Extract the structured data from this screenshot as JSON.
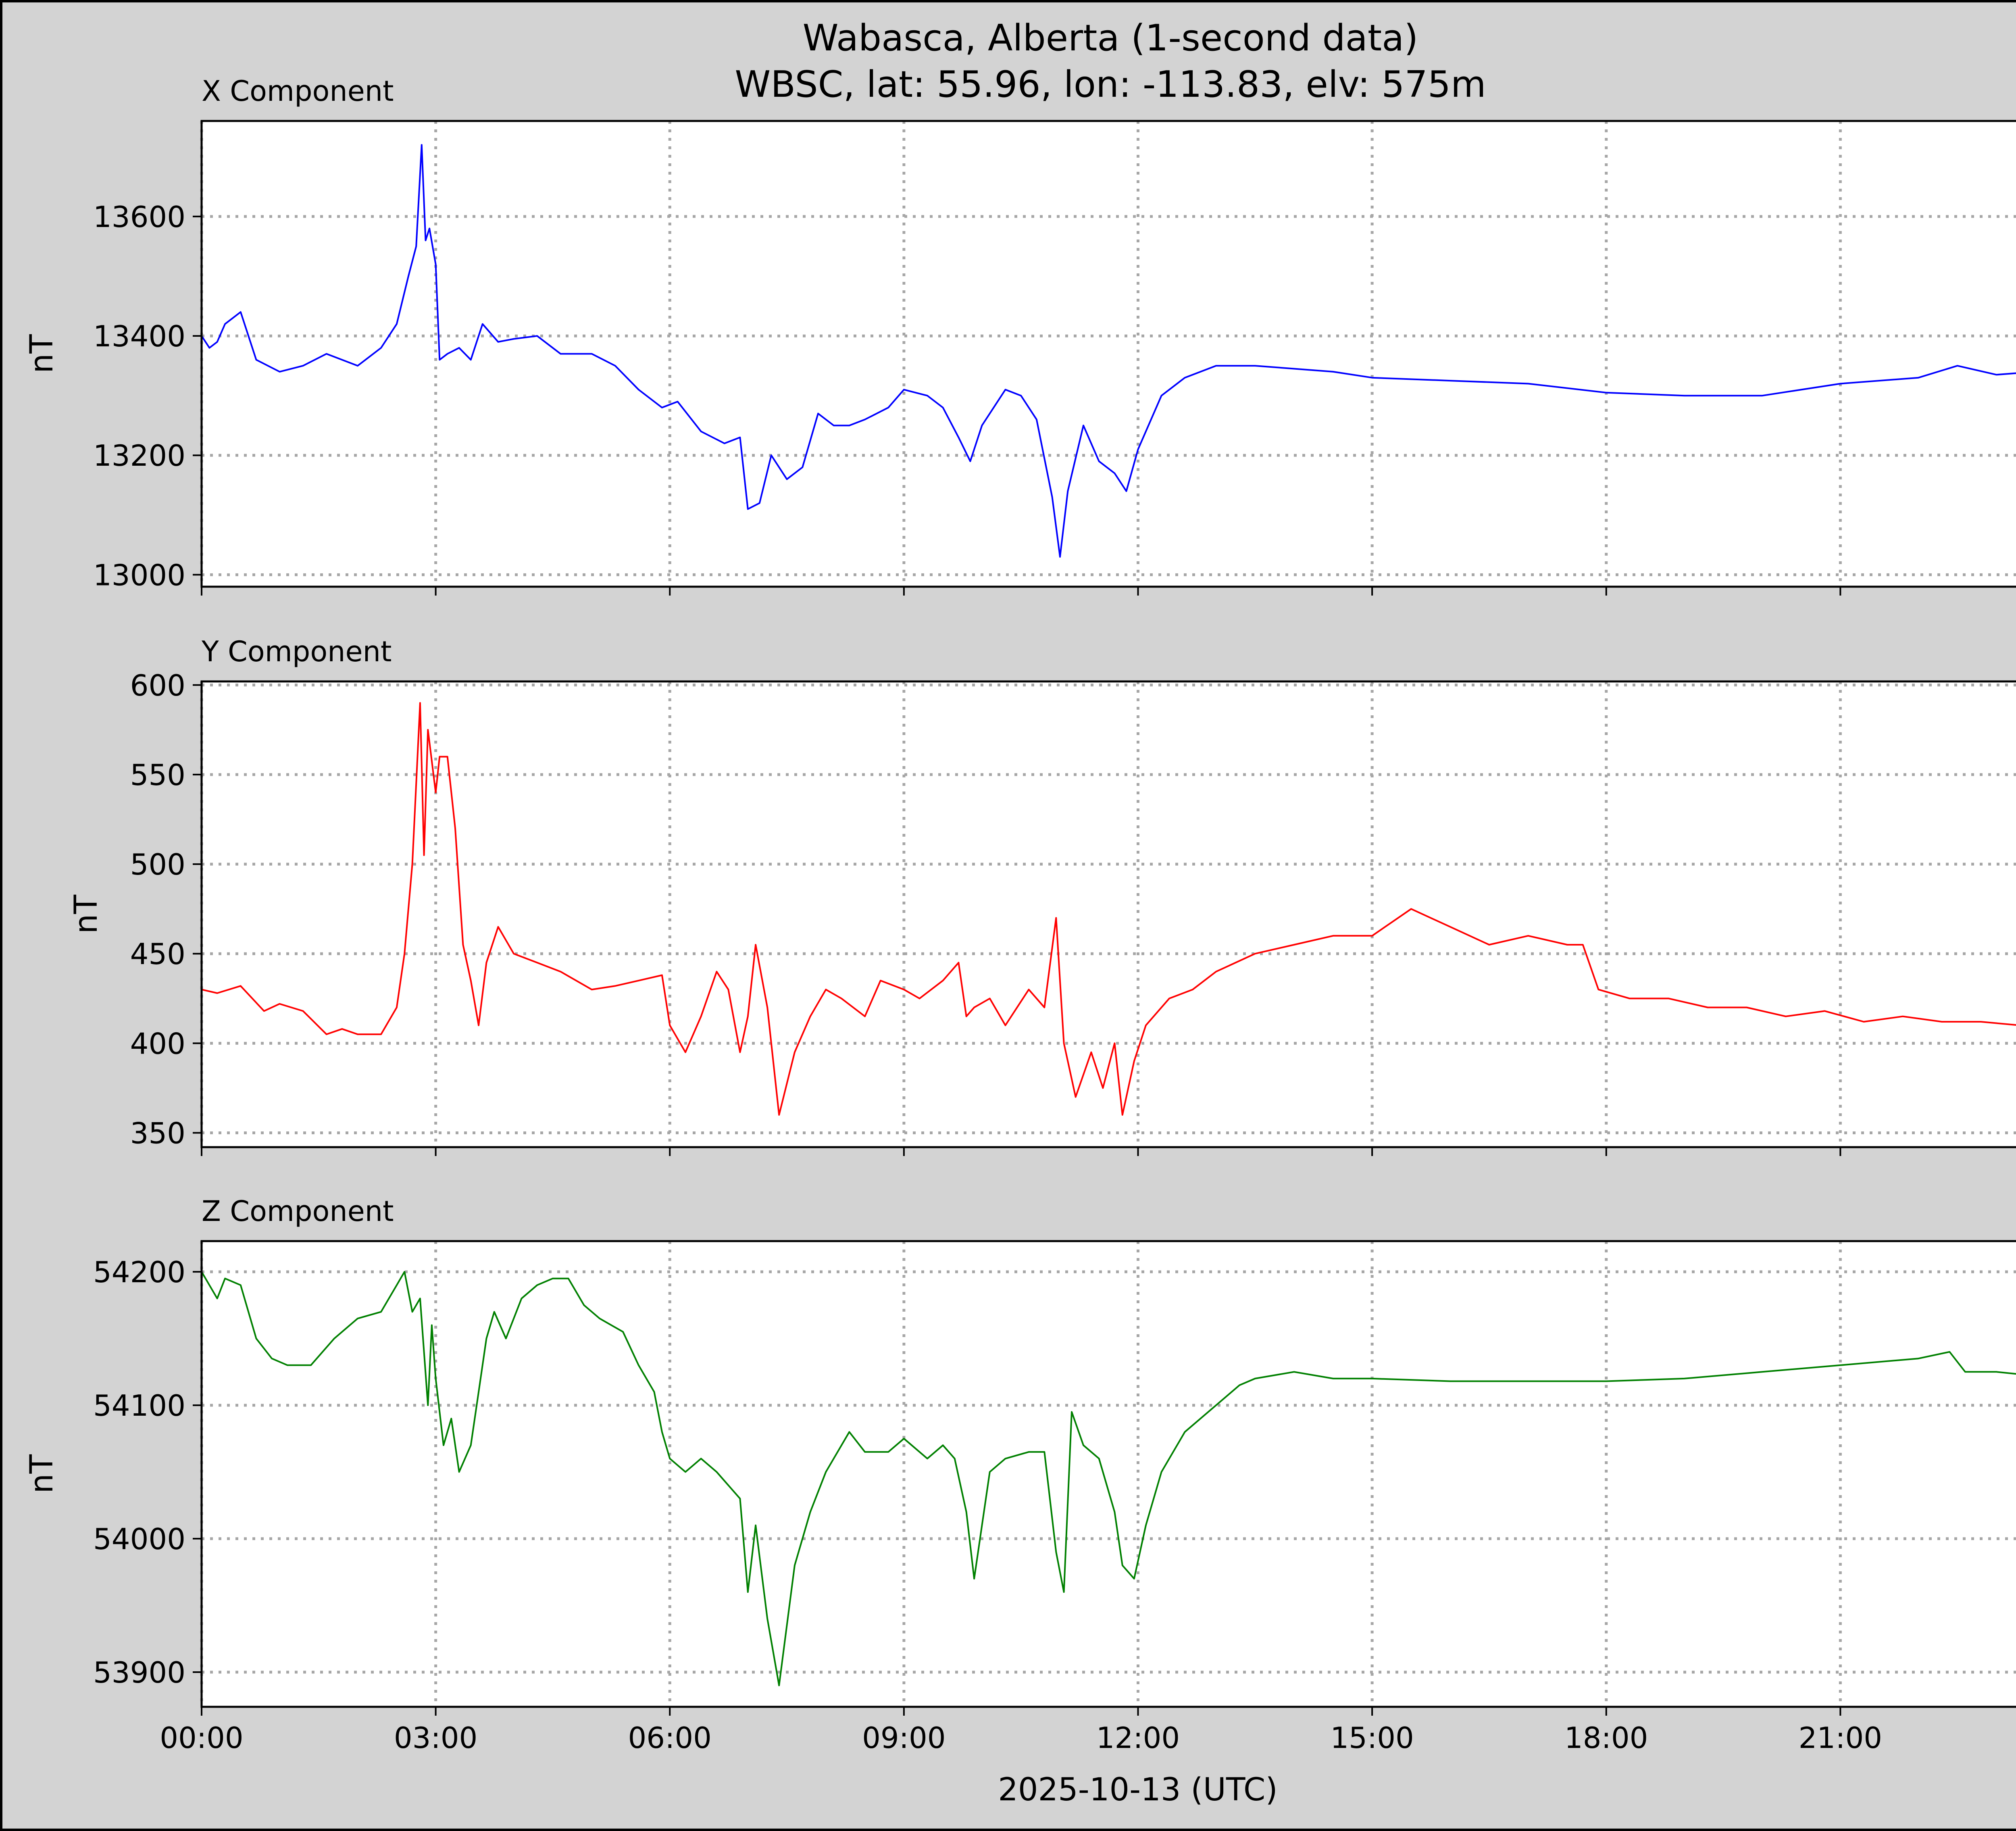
{
  "figure": {
    "title_line1": "Wabasca, Alberta (1-second data)",
    "title_line2": "WBSC, lat: 55.96, lon: -113.83, elv: 575m",
    "xlabel": "2025-10-13 (UTC)",
    "background": "#d3d3d3"
  },
  "chart_data": [
    {
      "type": "line",
      "title": "X Component",
      "ylabel": "nT",
      "color": "#0000ff",
      "grid": true,
      "xlim": [
        0,
        24
      ],
      "ylim": [
        12980,
        13760
      ],
      "yticks": [
        13000,
        13200,
        13400,
        13600
      ],
      "xticks": [
        0,
        3,
        6,
        9,
        12,
        15,
        18,
        21
      ],
      "xtick_labels": [
        "00:00",
        "03:00",
        "06:00",
        "09:00",
        "12:00",
        "15:00",
        "18:00",
        "21:00"
      ],
      "x_unit": "hours (UTC)",
      "series": [
        {
          "x": [
            0.0,
            0.1,
            0.2,
            0.3,
            0.5,
            0.7,
            1.0,
            1.3,
            1.6,
            2.0,
            2.3,
            2.5,
            2.65,
            2.75,
            2.82,
            2.87,
            2.92,
            3.0,
            3.05,
            3.15,
            3.3,
            3.45,
            3.6,
            3.8,
            4.0,
            4.3,
            4.6,
            5.0,
            5.3,
            5.6,
            5.9,
            6.1,
            6.4,
            6.7,
            6.9,
            7.0,
            7.15,
            7.3,
            7.5,
            7.7,
            7.9,
            8.1,
            8.3,
            8.5,
            8.8,
            9.0,
            9.3,
            9.5,
            9.7,
            9.85,
            10.0,
            10.3,
            10.5,
            10.7,
            10.9,
            11.0,
            11.1,
            11.3,
            11.5,
            11.7,
            11.85,
            12.0,
            12.3,
            12.6,
            13.0,
            13.5,
            14.0,
            14.5,
            15.0,
            16.0,
            17.0,
            18.0,
            19.0,
            20.0,
            21.0,
            22.0,
            22.5,
            23.0,
            23.5,
            24.0
          ],
          "y": [
            13400,
            13380,
            13390,
            13420,
            13440,
            13360,
            13340,
            13350,
            13370,
            13350,
            13380,
            13420,
            13500,
            13550,
            13720,
            13560,
            13580,
            13520,
            13360,
            13370,
            13380,
            13360,
            13420,
            13390,
            13395,
            13400,
            13370,
            13370,
            13350,
            13310,
            13280,
            13290,
            13240,
            13220,
            13230,
            13110,
            13120,
            13200,
            13160,
            13180,
            13270,
            13250,
            13250,
            13260,
            13280,
            13310,
            13300,
            13280,
            13230,
            13190,
            13250,
            13310,
            13300,
            13260,
            13130,
            13030,
            13140,
            13250,
            13190,
            13170,
            13140,
            13210,
            13300,
            13330,
            13350,
            13350,
            13345,
            13340,
            13330,
            13325,
            13320,
            13305,
            13300,
            13300,
            13320,
            13330,
            13350,
            13335,
            13340,
            13340
          ]
        }
      ]
    },
    {
      "type": "line",
      "title": "Y Component",
      "ylabel": "nT",
      "color": "#ff0000",
      "grid": true,
      "xlim": [
        0,
        24
      ],
      "ylim": [
        342,
        602
      ],
      "yticks": [
        350,
        400,
        450,
        500,
        550,
        600
      ],
      "xticks": [
        0,
        3,
        6,
        9,
        12,
        15,
        18,
        21
      ],
      "xtick_labels": [
        "00:00",
        "03:00",
        "06:00",
        "09:00",
        "12:00",
        "15:00",
        "18:00",
        "21:00"
      ],
      "x_unit": "hours (UTC)",
      "series": [
        {
          "x": [
            0.0,
            0.2,
            0.5,
            0.8,
            1.0,
            1.3,
            1.6,
            1.8,
            2.0,
            2.3,
            2.5,
            2.6,
            2.7,
            2.8,
            2.85,
            2.9,
            3.0,
            3.05,
            3.15,
            3.25,
            3.35,
            3.45,
            3.55,
            3.65,
            3.8,
            4.0,
            4.3,
            4.6,
            5.0,
            5.3,
            5.6,
            5.9,
            6.0,
            6.2,
            6.4,
            6.6,
            6.75,
            6.9,
            7.0,
            7.1,
            7.25,
            7.4,
            7.6,
            7.8,
            8.0,
            8.2,
            8.5,
            8.7,
            9.0,
            9.2,
            9.5,
            9.7,
            9.8,
            9.9,
            10.1,
            10.3,
            10.6,
            10.8,
            10.95,
            11.05,
            11.2,
            11.4,
            11.55,
            11.7,
            11.8,
            11.95,
            12.1,
            12.4,
            12.7,
            13.0,
            13.5,
            14.0,
            14.5,
            15.0,
            15.5,
            16.0,
            16.5,
            17.0,
            17.5,
            17.7,
            17.9,
            18.3,
            18.8,
            19.3,
            19.8,
            20.3,
            20.8,
            21.3,
            21.8,
            22.3,
            22.8,
            23.3,
            23.6,
            24.0
          ],
          "y": [
            430,
            428,
            432,
            418,
            422,
            418,
            405,
            408,
            405,
            405,
            420,
            450,
            500,
            590,
            505,
            575,
            540,
            560,
            560,
            520,
            455,
            435,
            410,
            445,
            465,
            450,
            445,
            440,
            430,
            432,
            435,
            438,
            410,
            395,
            415,
            440,
            430,
            395,
            415,
            455,
            420,
            360,
            395,
            415,
            430,
            425,
            415,
            435,
            430,
            425,
            435,
            445,
            415,
            420,
            425,
            410,
            430,
            420,
            470,
            400,
            370,
            395,
            375,
            400,
            360,
            390,
            410,
            425,
            430,
            440,
            450,
            455,
            460,
            460,
            475,
            465,
            455,
            460,
            455,
            455,
            430,
            425,
            425,
            420,
            420,
            415,
            418,
            412,
            415,
            412,
            412,
            410,
            405,
            410
          ]
        }
      ]
    },
    {
      "type": "line",
      "title": "Z Component",
      "ylabel": "nT",
      "color": "#008000",
      "grid": true,
      "xlim": [
        0,
        24
      ],
      "ylim": [
        53874,
        54223
      ],
      "yticks": [
        53900,
        54000,
        54100,
        54200
      ],
      "xticks": [
        0,
        3,
        6,
        9,
        12,
        15,
        18,
        21
      ],
      "xtick_labels": [
        "00:00",
        "03:00",
        "06:00",
        "09:00",
        "12:00",
        "15:00",
        "18:00",
        "21:00"
      ],
      "x_unit": "hours (UTC)",
      "series": [
        {
          "x": [
            0.0,
            0.1,
            0.2,
            0.3,
            0.5,
            0.7,
            0.9,
            1.1,
            1.4,
            1.7,
            2.0,
            2.3,
            2.5,
            2.6,
            2.7,
            2.8,
            2.85,
            2.9,
            2.95,
            3.0,
            3.1,
            3.2,
            3.3,
            3.45,
            3.55,
            3.65,
            3.75,
            3.9,
            4.1,
            4.3,
            4.5,
            4.7,
            4.9,
            5.1,
            5.4,
            5.6,
            5.8,
            5.9,
            6.0,
            6.2,
            6.4,
            6.6,
            6.75,
            6.9,
            7.0,
            7.1,
            7.25,
            7.4,
            7.6,
            7.8,
            8.0,
            8.3,
            8.5,
            8.8,
            9.0,
            9.3,
            9.5,
            9.65,
            9.8,
            9.9,
            10.1,
            10.3,
            10.6,
            10.8,
            10.95,
            11.05,
            11.15,
            11.3,
            11.5,
            11.7,
            11.8,
            11.95,
            12.1,
            12.3,
            12.6,
            13.0,
            13.3,
            13.5,
            14.0,
            14.5,
            15.0,
            16.0,
            17.0,
            18.0,
            19.0,
            20.0,
            21.0,
            22.0,
            22.4,
            22.6,
            23.0,
            23.5,
            24.0
          ],
          "y": [
            54200,
            54190,
            54180,
            54195,
            54190,
            54150,
            54135,
            54130,
            54130,
            54150,
            54165,
            54170,
            54190,
            54200,
            54170,
            54180,
            54140,
            54100,
            54160,
            54120,
            54070,
            54090,
            54050,
            54070,
            54110,
            54150,
            54170,
            54150,
            54180,
            54190,
            54195,
            54195,
            54175,
            54165,
            54155,
            54130,
            54110,
            54080,
            54060,
            54050,
            54060,
            54050,
            54040,
            54030,
            53960,
            54010,
            53940,
            53890,
            53980,
            54020,
            54050,
            54080,
            54065,
            54065,
            54075,
            54060,
            54070,
            54060,
            54020,
            53970,
            54050,
            54060,
            54065,
            54065,
            53990,
            53960,
            54095,
            54070,
            54060,
            54020,
            53980,
            53970,
            54010,
            54050,
            54080,
            54100,
            54115,
            54120,
            54125,
            54120,
            54120,
            54118,
            54118,
            54118,
            54120,
            54125,
            54130,
            54135,
            54140,
            54125,
            54125,
            54122,
            54125
          ]
        }
      ]
    }
  ]
}
